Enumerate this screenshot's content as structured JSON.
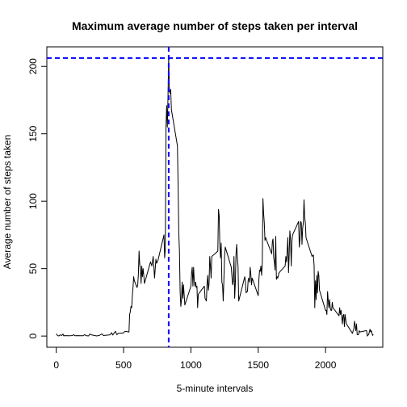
{
  "chart_data": {
    "type": "line",
    "title": "Maximum average number of steps taken per interval",
    "xlabel": "5-minute intervals",
    "ylabel": "Average number of steps taken",
    "xlim": [
      -70,
      2425
    ],
    "ylim": [
      -8.3,
      214.5
    ],
    "x_ticks": [
      0,
      500,
      1000,
      1500,
      2000
    ],
    "y_ticks": [
      0,
      50,
      100,
      150,
      200
    ],
    "grid": false,
    "series": [
      {
        "color": "#000000",
        "points": [
          [
            0,
            1.7
          ],
          [
            10,
            0.3
          ],
          [
            20,
            0.1
          ],
          [
            30,
            0.9
          ],
          [
            40,
            0.4
          ],
          [
            50,
            1.5
          ],
          [
            55,
            0.2
          ],
          [
            60,
            0.3
          ],
          [
            100,
            0.2
          ],
          [
            120,
            0.4
          ],
          [
            130,
            1.0
          ],
          [
            140,
            0.2
          ],
          [
            150,
            0.3
          ],
          [
            200,
            0.2
          ],
          [
            210,
            1.1
          ],
          [
            220,
            0.3
          ],
          [
            240,
            0.1
          ],
          [
            250,
            1.5
          ],
          [
            260,
            0.9
          ],
          [
            300,
            0.1
          ],
          [
            320,
            0.5
          ],
          [
            340,
            1.6
          ],
          [
            350,
            0.4
          ],
          [
            400,
            0.9
          ],
          [
            410,
            2.5
          ],
          [
            420,
            0.8
          ],
          [
            430,
            2.3
          ],
          [
            440,
            3.5
          ],
          [
            450,
            1.0
          ],
          [
            460,
            2.0
          ],
          [
            500,
            2.3
          ],
          [
            505,
            3.0
          ],
          [
            510,
            3.5
          ],
          [
            540,
            3.0
          ],
          [
            545,
            16.0
          ],
          [
            550,
            18.0
          ],
          [
            555,
            22.0
          ],
          [
            560,
            21.0
          ],
          [
            565,
            30.0
          ],
          [
            570,
            36.0
          ],
          [
            575,
            44.0
          ],
          [
            580,
            41.0
          ],
          [
            600,
            36.0
          ],
          [
            605,
            38.0
          ],
          [
            610,
            46.0
          ],
          [
            615,
            63.0
          ],
          [
            620,
            53.0
          ],
          [
            625,
            50.0
          ],
          [
            630,
            39.0
          ],
          [
            635,
            52.0
          ],
          [
            640,
            44.0
          ],
          [
            645,
            50.0
          ],
          [
            650,
            45.0
          ],
          [
            655,
            39.0
          ],
          [
            700,
            55.0
          ],
          [
            710,
            52.0
          ],
          [
            720,
            59.0
          ],
          [
            730,
            43.0
          ],
          [
            740,
            57.0
          ],
          [
            745,
            54.0
          ],
          [
            750,
            55.0
          ],
          [
            755,
            56.0
          ],
          [
            800,
            75.0
          ],
          [
            805,
            58.0
          ],
          [
            810,
            65.0
          ],
          [
            815,
            155.0
          ],
          [
            820,
            171.0
          ],
          [
            825,
            155.0
          ],
          [
            830,
            178.0
          ],
          [
            835,
            206.0
          ],
          [
            840,
            183.0
          ],
          [
            845,
            180.0
          ],
          [
            850,
            183.0
          ],
          [
            855,
            168.0
          ],
          [
            900,
            141.0
          ],
          [
            905,
            111.0
          ],
          [
            910,
            76.0
          ],
          [
            915,
            63.0
          ],
          [
            920,
            33.0
          ],
          [
            925,
            22.0
          ],
          [
            930,
            27.0
          ],
          [
            935,
            40.0
          ],
          [
            940,
            28.0
          ],
          [
            945,
            38.0
          ],
          [
            955,
            23.0
          ],
          [
            1000,
            37.0
          ],
          [
            1005,
            47.0
          ],
          [
            1010,
            51.0
          ],
          [
            1015,
            37.0
          ],
          [
            1020,
            51.0
          ],
          [
            1025,
            41.0
          ],
          [
            1030,
            37.0
          ],
          [
            1035,
            40.0
          ],
          [
            1040,
            36.0
          ],
          [
            1045,
            37.0
          ],
          [
            1050,
            21.0
          ],
          [
            1055,
            31.0
          ],
          [
            1100,
            37.0
          ],
          [
            1105,
            28.0
          ],
          [
            1110,
            27.0
          ],
          [
            1115,
            26.0
          ],
          [
            1120,
            39.0
          ],
          [
            1125,
            45.0
          ],
          [
            1130,
            34.0
          ],
          [
            1135,
            39.0
          ],
          [
            1140,
            59.0
          ],
          [
            1145,
            52.0
          ],
          [
            1150,
            43.0
          ],
          [
            1155,
            59.0
          ],
          [
            1200,
            63.0
          ],
          [
            1205,
            94.0
          ],
          [
            1210,
            89.0
          ],
          [
            1215,
            67.0
          ],
          [
            1220,
            58.0
          ],
          [
            1225,
            69.0
          ],
          [
            1230,
            40.0
          ],
          [
            1235,
            38.0
          ],
          [
            1240,
            26.0
          ],
          [
            1245,
            42.0
          ],
          [
            1250,
            59.0
          ],
          [
            1255,
            66.0
          ],
          [
            1300,
            51.0
          ],
          [
            1305,
            44.0
          ],
          [
            1310,
            38.0
          ],
          [
            1315,
            41.0
          ],
          [
            1320,
            59.0
          ],
          [
            1325,
            28.0
          ],
          [
            1330,
            39.0
          ],
          [
            1335,
            61.0
          ],
          [
            1340,
            68.0
          ],
          [
            1345,
            58.0
          ],
          [
            1350,
            52.0
          ],
          [
            1355,
            26.0
          ],
          [
            1400,
            44.0
          ],
          [
            1405,
            40.0
          ],
          [
            1410,
            32.0
          ],
          [
            1415,
            33.0
          ],
          [
            1420,
            33.0
          ],
          [
            1425,
            41.0
          ],
          [
            1430,
            43.0
          ],
          [
            1435,
            40.0
          ],
          [
            1440,
            51.0
          ],
          [
            1445,
            46.0
          ],
          [
            1450,
            38.0
          ],
          [
            1455,
            43.0
          ],
          [
            1500,
            30.0
          ],
          [
            1505,
            42.0
          ],
          [
            1510,
            49.0
          ],
          [
            1515,
            48.0
          ],
          [
            1520,
            52.0
          ],
          [
            1525,
            45.0
          ],
          [
            1530,
            54.0
          ],
          [
            1535,
            102.0
          ],
          [
            1540,
            91.0
          ],
          [
            1545,
            84.0
          ],
          [
            1550,
            71.0
          ],
          [
            1555,
            73.0
          ],
          [
            1600,
            61.0
          ],
          [
            1605,
            70.0
          ],
          [
            1610,
            72.0
          ],
          [
            1615,
            58.0
          ],
          [
            1620,
            55.0
          ],
          [
            1625,
            49.0
          ],
          [
            1630,
            74.0
          ],
          [
            1635,
            42.0
          ],
          [
            1640,
            44.0
          ],
          [
            1645,
            43.0
          ],
          [
            1650,
            45.0
          ],
          [
            1655,
            47.0
          ],
          [
            1700,
            52.0
          ],
          [
            1705,
            59.0
          ],
          [
            1710,
            55.0
          ],
          [
            1715,
            63.0
          ],
          [
            1720,
            73.0
          ],
          [
            1725,
            47.0
          ],
          [
            1730,
            61.0
          ],
          [
            1735,
            78.0
          ],
          [
            1740,
            72.0
          ],
          [
            1745,
            52.0
          ],
          [
            1750,
            70.0
          ],
          [
            1755,
            75.0
          ],
          [
            1800,
            85.0
          ],
          [
            1805,
            66.0
          ],
          [
            1810,
            72.0
          ],
          [
            1815,
            85.0
          ],
          [
            1820,
            84.0
          ],
          [
            1825,
            68.0
          ],
          [
            1830,
            80.0
          ],
          [
            1835,
            84.0
          ],
          [
            1840,
            101.0
          ],
          [
            1845,
            88.0
          ],
          [
            1850,
            84.0
          ],
          [
            1855,
            73.0
          ],
          [
            1900,
            59.0
          ],
          [
            1905,
            60.0
          ],
          [
            1910,
            60.0
          ],
          [
            1915,
            52.0
          ],
          [
            1920,
            21.0
          ],
          [
            1925,
            41.0
          ],
          [
            1930,
            27.0
          ],
          [
            1935,
            45.0
          ],
          [
            1940,
            32.0
          ],
          [
            1945,
            48.0
          ],
          [
            1950,
            45.0
          ],
          [
            1955,
            34.0
          ],
          [
            2000,
            19.0
          ],
          [
            2005,
            19.0
          ],
          [
            2010,
            16.0
          ],
          [
            2015,
            33.0
          ],
          [
            2020,
            26.0
          ],
          [
            2025,
            21.0
          ],
          [
            2030,
            27.0
          ],
          [
            2035,
            21.0
          ],
          [
            2040,
            19.0
          ],
          [
            2045,
            19.0
          ],
          [
            2050,
            25.0
          ],
          [
            2055,
            21.0
          ],
          [
            2100,
            15.0
          ],
          [
            2105,
            21.0
          ],
          [
            2110,
            16.0
          ],
          [
            2115,
            19.0
          ],
          [
            2120,
            15.0
          ],
          [
            2125,
            9.0
          ],
          [
            2130,
            15.0
          ],
          [
            2135,
            16.0
          ],
          [
            2140,
            7.0
          ],
          [
            2145,
            16.0
          ],
          [
            2150,
            12.0
          ],
          [
            2155,
            9.0
          ],
          [
            2200,
            2.0
          ],
          [
            2205,
            4.0
          ],
          [
            2210,
            5.0
          ],
          [
            2215,
            11.0
          ],
          [
            2220,
            8.0
          ],
          [
            2225,
            4.0
          ],
          [
            2230,
            9.0
          ],
          [
            2235,
            1.0
          ],
          [
            2240,
            1.0
          ],
          [
            2245,
            1.0
          ],
          [
            2250,
            4.0
          ],
          [
            2255,
            3.0
          ],
          [
            2300,
            4.0
          ],
          [
            2305,
            4.0
          ],
          [
            2310,
            0.0
          ],
          [
            2315,
            0.8
          ],
          [
            2320,
            1.0
          ],
          [
            2325,
            3.0
          ],
          [
            2330,
            5.0
          ],
          [
            2335,
            3.0
          ],
          [
            2340,
            4.0
          ],
          [
            2345,
            2.0
          ],
          [
            2350,
            0.5
          ],
          [
            2355,
            1.1
          ]
        ]
      }
    ],
    "reference_lines": [
      {
        "orientation": "horizontal",
        "value": 206.2,
        "color": "#0000ff",
        "style": "dashed"
      },
      {
        "orientation": "vertical",
        "value": 835,
        "color": "#0000ff",
        "style": "dashed"
      }
    ]
  }
}
